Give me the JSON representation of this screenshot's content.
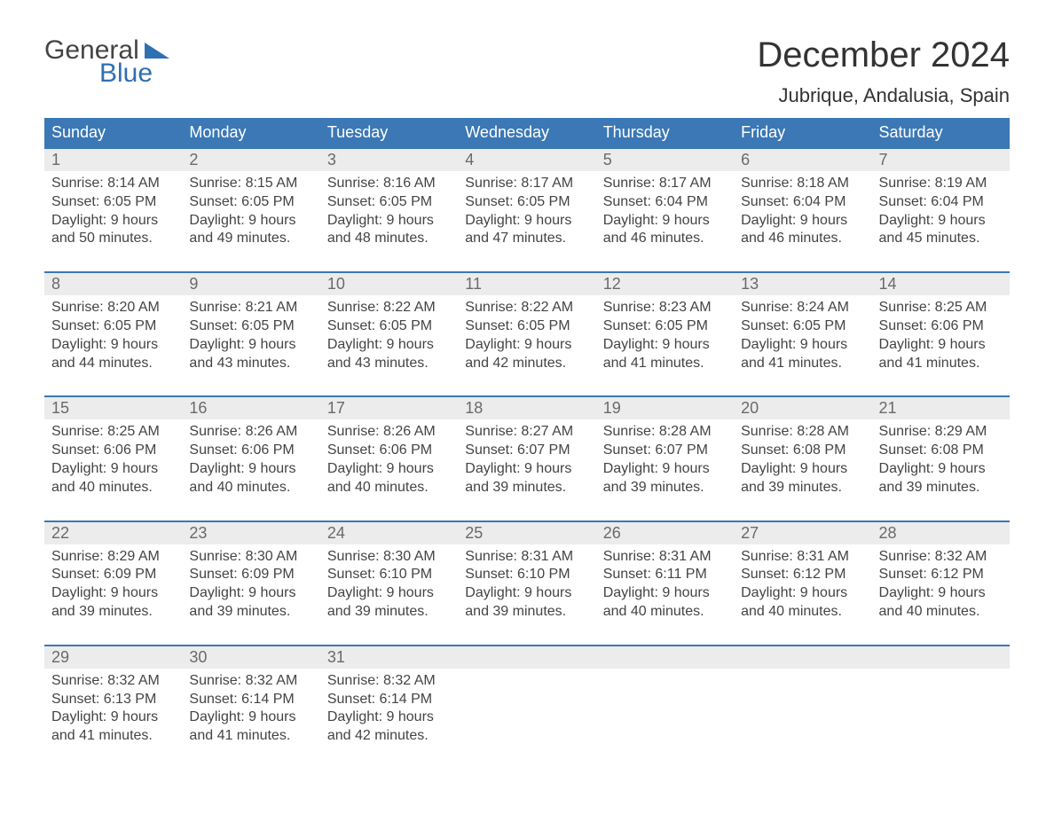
{
  "brand": {
    "word1": "General",
    "word2": "Blue",
    "accent_color": "#2f6fb3"
  },
  "header": {
    "month_title": "December 2024",
    "location": "Jubrique, Andalusia, Spain",
    "title_fontsize": 40,
    "location_fontsize": 22,
    "title_color": "#333333"
  },
  "colors": {
    "header_bg": "#3b78b5",
    "header_text": "#ffffff",
    "week_border": "#3b78b5",
    "daynum_bg": "#ececec",
    "daynum_color": "#6a6a6a",
    "body_text": "#444444",
    "page_bg": "#ffffff"
  },
  "typography": {
    "base_family": "Arial",
    "dow_fontsize": 18,
    "daynum_fontsize": 18,
    "body_fontsize": 16
  },
  "days_of_week": [
    "Sunday",
    "Monday",
    "Tuesday",
    "Wednesday",
    "Thursday",
    "Friday",
    "Saturday"
  ],
  "labels": {
    "sunrise": "Sunrise",
    "sunset": "Sunset",
    "daylight": "Daylight"
  },
  "weeks": [
    [
      {
        "num": "1",
        "sunrise": "8:14 AM",
        "sunset": "6:05 PM",
        "daylight_h": 9,
        "daylight_m": 50
      },
      {
        "num": "2",
        "sunrise": "8:15 AM",
        "sunset": "6:05 PM",
        "daylight_h": 9,
        "daylight_m": 49
      },
      {
        "num": "3",
        "sunrise": "8:16 AM",
        "sunset": "6:05 PM",
        "daylight_h": 9,
        "daylight_m": 48
      },
      {
        "num": "4",
        "sunrise": "8:17 AM",
        "sunset": "6:05 PM",
        "daylight_h": 9,
        "daylight_m": 47
      },
      {
        "num": "5",
        "sunrise": "8:17 AM",
        "sunset": "6:04 PM",
        "daylight_h": 9,
        "daylight_m": 46
      },
      {
        "num": "6",
        "sunrise": "8:18 AM",
        "sunset": "6:04 PM",
        "daylight_h": 9,
        "daylight_m": 46
      },
      {
        "num": "7",
        "sunrise": "8:19 AM",
        "sunset": "6:04 PM",
        "daylight_h": 9,
        "daylight_m": 45
      }
    ],
    [
      {
        "num": "8",
        "sunrise": "8:20 AM",
        "sunset": "6:05 PM",
        "daylight_h": 9,
        "daylight_m": 44
      },
      {
        "num": "9",
        "sunrise": "8:21 AM",
        "sunset": "6:05 PM",
        "daylight_h": 9,
        "daylight_m": 43
      },
      {
        "num": "10",
        "sunrise": "8:22 AM",
        "sunset": "6:05 PM",
        "daylight_h": 9,
        "daylight_m": 43
      },
      {
        "num": "11",
        "sunrise": "8:22 AM",
        "sunset": "6:05 PM",
        "daylight_h": 9,
        "daylight_m": 42
      },
      {
        "num": "12",
        "sunrise": "8:23 AM",
        "sunset": "6:05 PM",
        "daylight_h": 9,
        "daylight_m": 41
      },
      {
        "num": "13",
        "sunrise": "8:24 AM",
        "sunset": "6:05 PM",
        "daylight_h": 9,
        "daylight_m": 41
      },
      {
        "num": "14",
        "sunrise": "8:25 AM",
        "sunset": "6:06 PM",
        "daylight_h": 9,
        "daylight_m": 41
      }
    ],
    [
      {
        "num": "15",
        "sunrise": "8:25 AM",
        "sunset": "6:06 PM",
        "daylight_h": 9,
        "daylight_m": 40
      },
      {
        "num": "16",
        "sunrise": "8:26 AM",
        "sunset": "6:06 PM",
        "daylight_h": 9,
        "daylight_m": 40
      },
      {
        "num": "17",
        "sunrise": "8:26 AM",
        "sunset": "6:06 PM",
        "daylight_h": 9,
        "daylight_m": 40
      },
      {
        "num": "18",
        "sunrise": "8:27 AM",
        "sunset": "6:07 PM",
        "daylight_h": 9,
        "daylight_m": 39
      },
      {
        "num": "19",
        "sunrise": "8:28 AM",
        "sunset": "6:07 PM",
        "daylight_h": 9,
        "daylight_m": 39
      },
      {
        "num": "20",
        "sunrise": "8:28 AM",
        "sunset": "6:08 PM",
        "daylight_h": 9,
        "daylight_m": 39
      },
      {
        "num": "21",
        "sunrise": "8:29 AM",
        "sunset": "6:08 PM",
        "daylight_h": 9,
        "daylight_m": 39
      }
    ],
    [
      {
        "num": "22",
        "sunrise": "8:29 AM",
        "sunset": "6:09 PM",
        "daylight_h": 9,
        "daylight_m": 39
      },
      {
        "num": "23",
        "sunrise": "8:30 AM",
        "sunset": "6:09 PM",
        "daylight_h": 9,
        "daylight_m": 39
      },
      {
        "num": "24",
        "sunrise": "8:30 AM",
        "sunset": "6:10 PM",
        "daylight_h": 9,
        "daylight_m": 39
      },
      {
        "num": "25",
        "sunrise": "8:31 AM",
        "sunset": "6:10 PM",
        "daylight_h": 9,
        "daylight_m": 39
      },
      {
        "num": "26",
        "sunrise": "8:31 AM",
        "sunset": "6:11 PM",
        "daylight_h": 9,
        "daylight_m": 40
      },
      {
        "num": "27",
        "sunrise": "8:31 AM",
        "sunset": "6:12 PM",
        "daylight_h": 9,
        "daylight_m": 40
      },
      {
        "num": "28",
        "sunrise": "8:32 AM",
        "sunset": "6:12 PM",
        "daylight_h": 9,
        "daylight_m": 40
      }
    ],
    [
      {
        "num": "29",
        "sunrise": "8:32 AM",
        "sunset": "6:13 PM",
        "daylight_h": 9,
        "daylight_m": 41
      },
      {
        "num": "30",
        "sunrise": "8:32 AM",
        "sunset": "6:14 PM",
        "daylight_h": 9,
        "daylight_m": 41
      },
      {
        "num": "31",
        "sunrise": "8:32 AM",
        "sunset": "6:14 PM",
        "daylight_h": 9,
        "daylight_m": 42
      },
      null,
      null,
      null,
      null
    ]
  ]
}
